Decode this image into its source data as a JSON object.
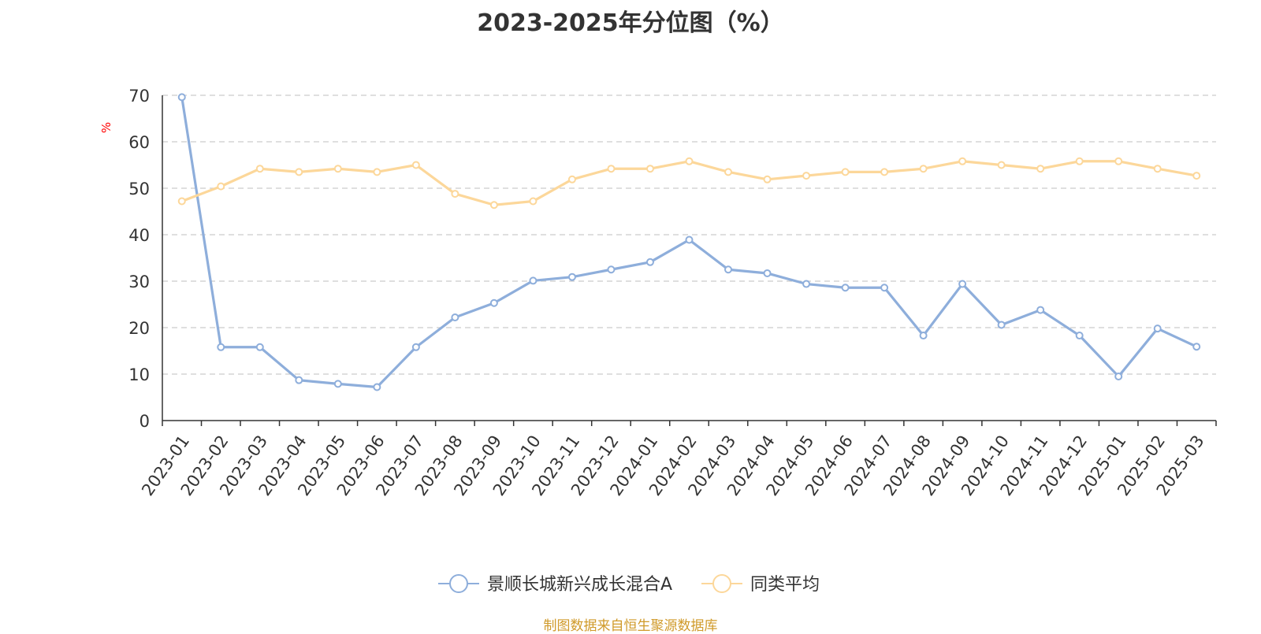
{
  "chart_data": {
    "type": "line",
    "title": "2023-2025年分位图（%）",
    "ylabel": "%",
    "ylim": [
      0,
      70
    ],
    "yticks": [
      0,
      10,
      20,
      30,
      40,
      50,
      60,
      70
    ],
    "grid": true,
    "legend_position": "bottom",
    "categories": [
      "2023-01",
      "2023-02",
      "2023-03",
      "2023-04",
      "2023-05",
      "2023-06",
      "2023-07",
      "2023-08",
      "2023-09",
      "2023-10",
      "2023-11",
      "2023-12",
      "2024-01",
      "2024-02",
      "2024-03",
      "2024-04",
      "2024-05",
      "2024-06",
      "2024-07",
      "2024-08",
      "2024-09",
      "2024-10",
      "2024-11",
      "2024-12",
      "2025-01",
      "2025-02",
      "2025-03"
    ],
    "series": [
      {
        "name": "景顺长城新兴成长混合A",
        "color": "#8eaedb",
        "values": [
          69.6,
          15.8,
          15.8,
          8.7,
          7.9,
          7.2,
          15.8,
          22.2,
          25.3,
          30.1,
          30.9,
          32.5,
          34.1,
          38.9,
          32.5,
          31.7,
          29.4,
          28.6,
          28.6,
          18.3,
          29.4,
          20.6,
          23.8,
          18.3,
          9.5,
          19.8,
          15.9
        ]
      },
      {
        "name": "同类平均",
        "color": "#fcd79a",
        "values": [
          47.2,
          50.4,
          54.2,
          53.5,
          54.2,
          53.5,
          55.0,
          48.8,
          46.4,
          47.2,
          51.9,
          54.2,
          54.2,
          55.8,
          53.5,
          51.9,
          52.7,
          53.5,
          53.5,
          54.2,
          55.8,
          55.0,
          54.2,
          55.8,
          55.8,
          54.2,
          52.7
        ]
      }
    ]
  },
  "source": {
    "text": "制图数据来自恒生聚源数据库",
    "color": "#d09a2a"
  },
  "colors": {
    "axis": "#333333",
    "grid": "#cccccc",
    "ylabel": "#ff0000"
  }
}
